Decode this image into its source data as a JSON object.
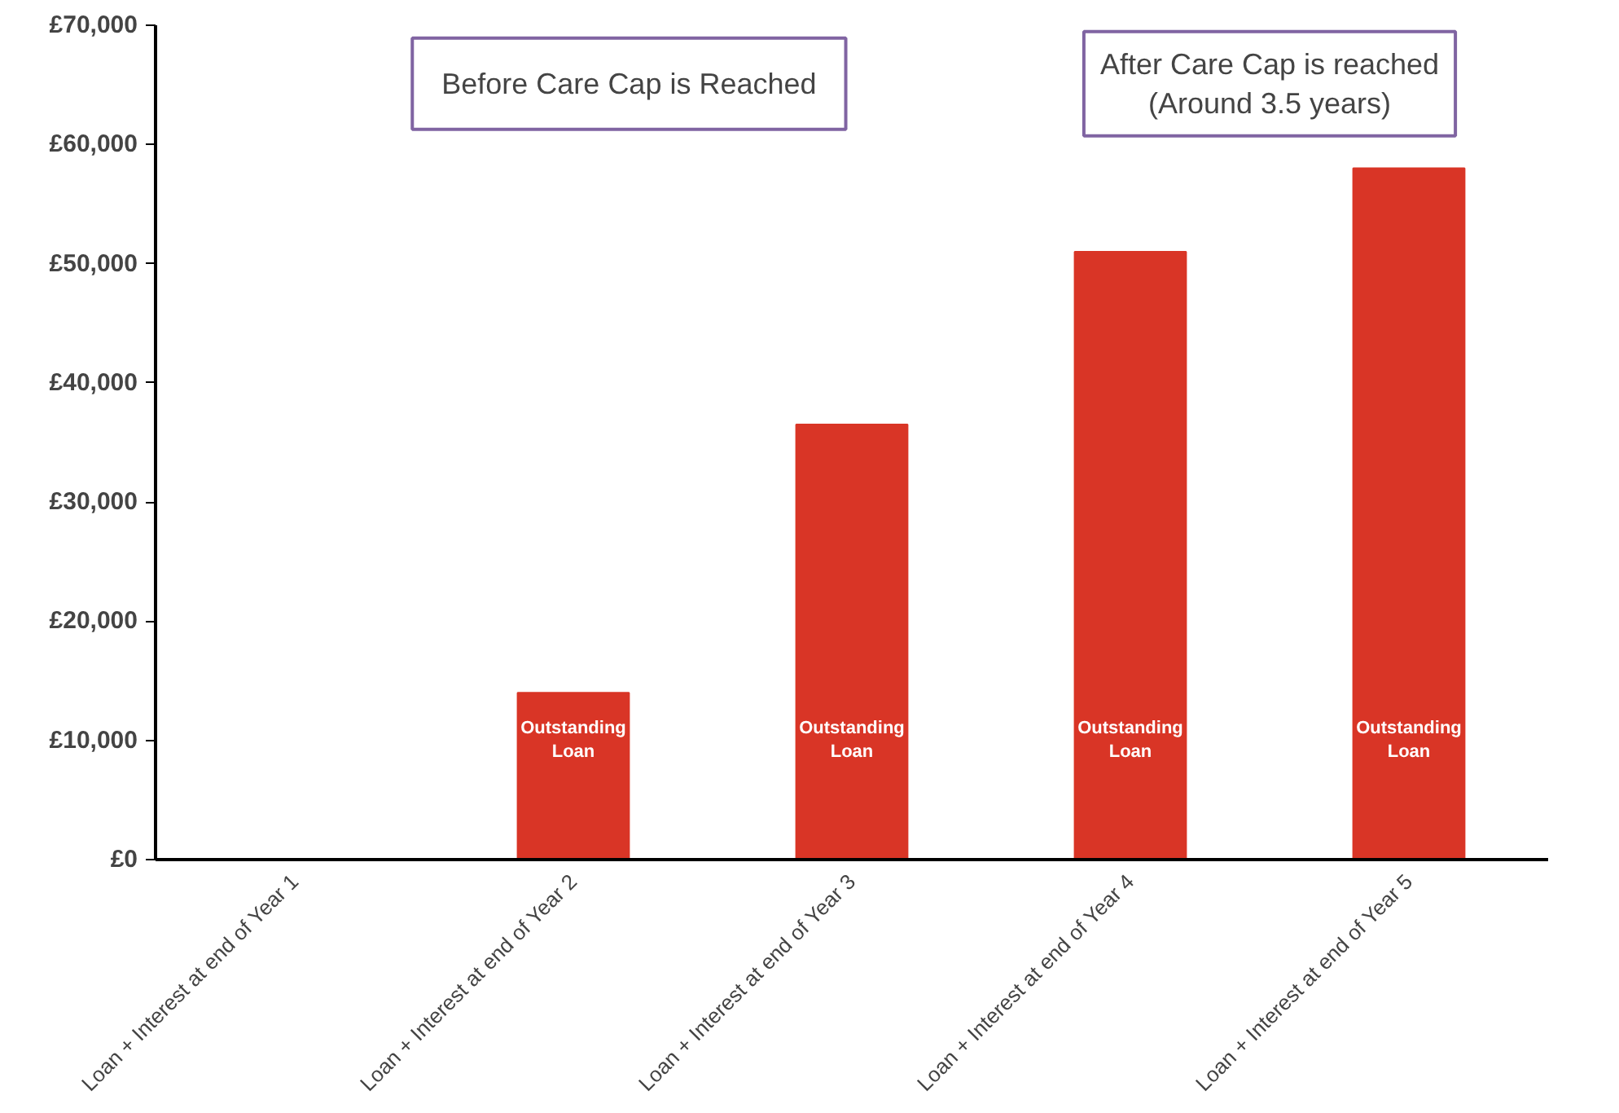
{
  "chart_data": {
    "type": "bar",
    "categories": [
      "Loan + Interest at end of Year 1",
      "Loan + Interest at end of Year 2",
      "Loan + Interest at end of Year 3",
      "Loan + Interest at end of Year 4",
      "Loan + Interest at end of Year 5"
    ],
    "values": [
      0,
      14000,
      36500,
      51000,
      58000
    ],
    "color": "#d93526",
    "ylim": [
      0,
      70000
    ],
    "yticks": [
      {
        "value": 0,
        "label": "£0"
      },
      {
        "value": 10000,
        "label": "£10,000"
      },
      {
        "value": 20000,
        "label": "£20,000"
      },
      {
        "value": 30000,
        "label": "£30,000"
      },
      {
        "value": 40000,
        "label": "£40,000"
      },
      {
        "value": 50000,
        "label": "£50,000"
      },
      {
        "value": 60000,
        "label": "£60,000"
      },
      {
        "value": 70000,
        "label": "£70,000"
      }
    ],
    "grid": false,
    "annotations": [
      "Before Care Cap is Reached",
      "After Care Cap is reached\n(Around 3.5 years)",
      "Outstanding Loan",
      "Outstanding Loan",
      "Outstanding Loan",
      "Outstanding Loan"
    ]
  }
}
